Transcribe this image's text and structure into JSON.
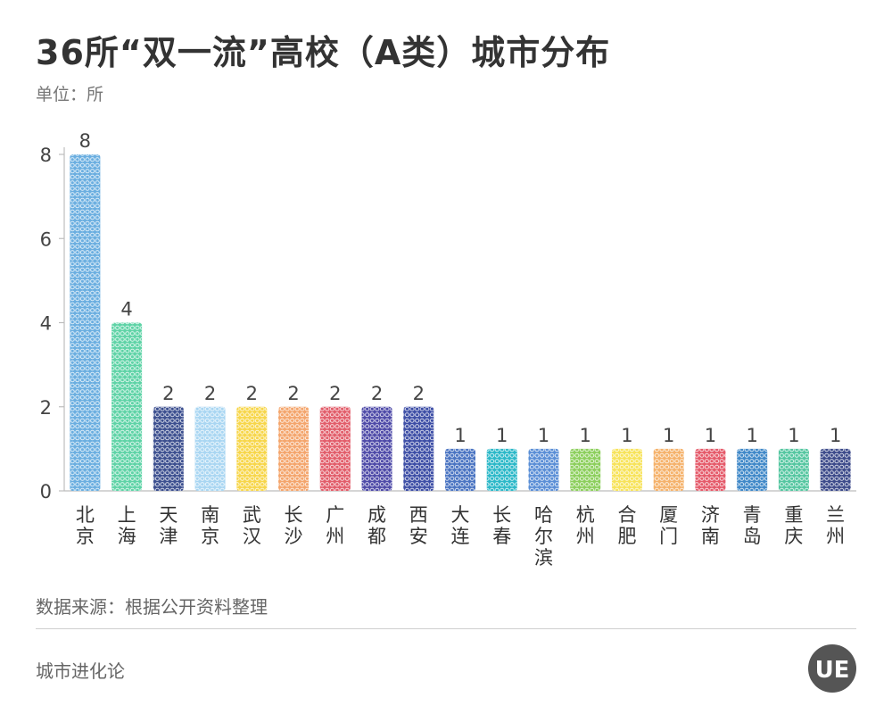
{
  "header": {
    "title": "36所“双一流”高校（A类）城市分布",
    "unit": "单位：所"
  },
  "chart_data": {
    "type": "bar",
    "categories": [
      "北京",
      "上海",
      "天津",
      "南京",
      "武汉",
      "长沙",
      "广州",
      "成都",
      "西安",
      "大连",
      "长春",
      "哈尔滨",
      "杭州",
      "合肥",
      "厦门",
      "济南",
      "青岛",
      "重庆",
      "兰州"
    ],
    "values": [
      8,
      4,
      2,
      2,
      2,
      2,
      2,
      2,
      2,
      1,
      1,
      1,
      1,
      1,
      1,
      1,
      1,
      1,
      1
    ],
    "colors": [
      "#6aaee0",
      "#5ed3a6",
      "#3c4f8f",
      "#a9d6f2",
      "#f7d64a",
      "#f4a56c",
      "#e25d6a",
      "#4e4aa8",
      "#3d4ea6",
      "#4a74c2",
      "#2bb8c8",
      "#5a8ed6",
      "#8ccf5c",
      "#f7e35a",
      "#f5b26b",
      "#e55a6a",
      "#3f88c8",
      "#54c6a0",
      "#3c4a8a"
    ],
    "yticks": [
      0,
      2,
      4,
      6,
      8
    ],
    "ylim": [
      0,
      8
    ],
    "title": "36所“双一流”高校（A类）城市分布",
    "xlabel": "",
    "ylabel": "单位：所",
    "grid": false,
    "legend": "none"
  },
  "footer": {
    "source": "数据来源：根据公开资料整理",
    "brand": "城市进化论",
    "logo_text": "UE",
    "logo_color": "#555555"
  }
}
